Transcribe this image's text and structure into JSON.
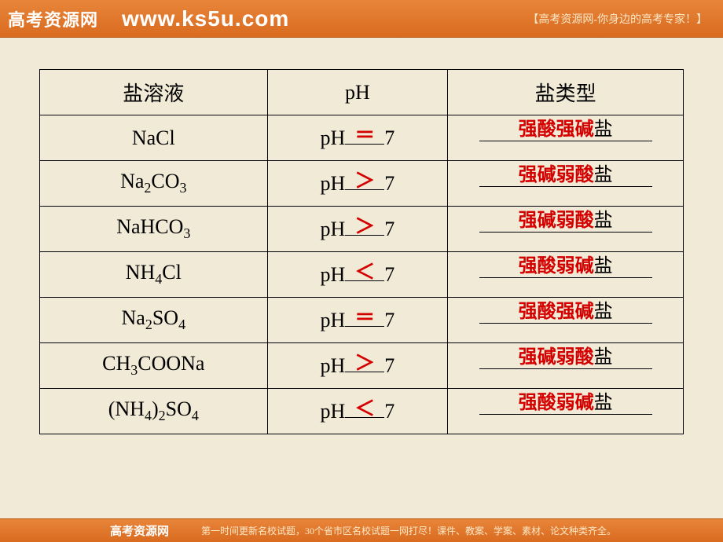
{
  "header": {
    "logo": "高考资源网",
    "url": "www.ks5u.com",
    "tagline": "【高考资源网-你身边的高考专家！】"
  },
  "table": {
    "headers": {
      "solution": "盐溶液",
      "ph": "pH",
      "type": "盐类型"
    },
    "ph_prefix": "pH",
    "ph_suffix": "7",
    "rows": [
      {
        "formula_html": "NaCl",
        "sign": "＝",
        "type_red": "强酸强碱",
        "type_black": "盐"
      },
      {
        "formula_html": "Na<sub>2</sub>CO<sub>3</sub>",
        "sign": "＞",
        "type_red": "强碱弱酸",
        "type_black": "盐"
      },
      {
        "formula_html": "NaHCO<sub>3</sub>",
        "sign": "＞",
        "type_red": "强碱弱酸",
        "type_black": "盐"
      },
      {
        "formula_html": "NH<sub>4</sub>Cl",
        "sign": "＜",
        "type_red": "强酸弱碱",
        "type_black": "盐"
      },
      {
        "formula_html": "Na<sub>2</sub>SO<sub>4</sub>",
        "sign": "＝",
        "type_red": "强酸强碱",
        "type_black": "盐"
      },
      {
        "formula_html": "CH<sub>3</sub>COONa",
        "sign": "＞",
        "type_red": "强碱弱酸",
        "type_black": "盐"
      },
      {
        "formula_html": "(NH<sub>4</sub>)<sub>2</sub>SO<sub>4</sub>",
        "sign": "＜",
        "type_red": "强酸弱碱",
        "type_black": "盐"
      }
    ]
  },
  "footer": {
    "logo": "高考资源网",
    "text": "第一时间更新名校试题，30个省市区名校试题一网打尽！课件、教案、学案、素材、论文种类齐全。"
  },
  "colors": {
    "page_bg": "#f0ead6",
    "bar_gradient_top": "#e8853a",
    "bar_gradient_bottom": "#d96b1f",
    "answer_red": "#d40000",
    "border": "#000000"
  }
}
